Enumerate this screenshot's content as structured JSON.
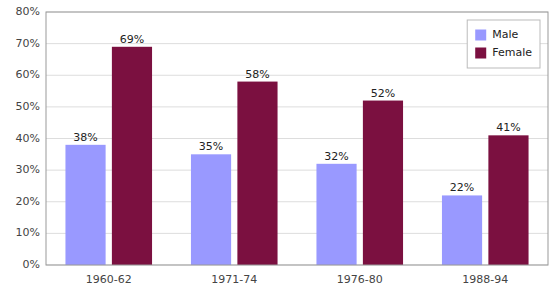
{
  "chart_data": {
    "type": "bar",
    "categories": [
      "1960-62",
      "1971-74",
      "1976-80",
      "1988-94"
    ],
    "series": [
      {
        "name": "Male",
        "color": "#9999FF",
        "values": [
          0.38,
          0.35,
          0.32,
          0.22
        ],
        "value_labels": [
          "38%",
          "35%",
          "32%",
          "22%"
        ]
      },
      {
        "name": "Female",
        "color": "#7B1040",
        "values": [
          0.69,
          0.58,
          0.52,
          0.41
        ],
        "value_labels": [
          "69%",
          "58%",
          "52%",
          "41%"
        ]
      }
    ],
    "ylim": [
      0,
      0.8
    ],
    "yticks": [
      {
        "value": 0,
        "label": "0%"
      },
      {
        "value": 0.1,
        "label": "10%"
      },
      {
        "value": 0.2,
        "label": "20%"
      },
      {
        "value": 0.3,
        "label": "30%"
      },
      {
        "value": 0.4,
        "label": "40%"
      },
      {
        "value": 0.5,
        "label": "50%"
      },
      {
        "value": 0.6,
        "label": "60%"
      },
      {
        "value": 0.7,
        "label": "70%"
      },
      {
        "value": 0.8,
        "label": "80%"
      }
    ],
    "grid": true,
    "legend": "upper right",
    "data_labels": true
  }
}
